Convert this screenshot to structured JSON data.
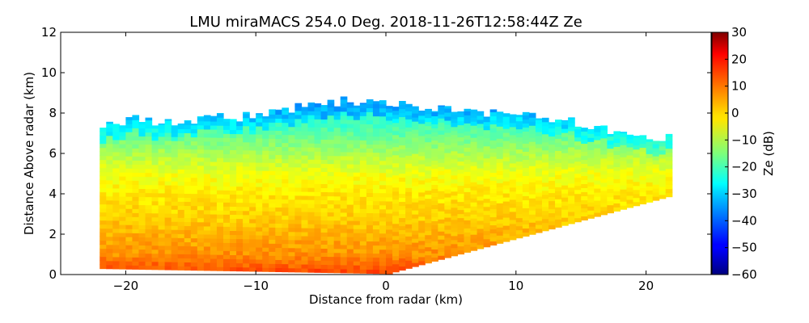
{
  "chart_data": {
    "type": "heatmap",
    "title": "LMU miraMACS 254.0 Deg. 2018-11-26T12:58:44Z  Ze",
    "xlabel": "Distance from radar (km)",
    "ylabel": "Distance Above radar  (km)",
    "xlim": [
      -25,
      25
    ],
    "ylim": [
      0,
      12
    ],
    "xticks": [
      -20,
      -10,
      0,
      10,
      20
    ],
    "xtick_labels": [
      "−20",
      "−10",
      "0",
      "10",
      "20"
    ],
    "yticks": [
      0,
      2,
      4,
      6,
      8,
      10,
      12
    ],
    "ytick_labels": [
      "0",
      "2",
      "4",
      "6",
      "8",
      "10",
      "12"
    ],
    "colorbar": {
      "label": "Ze (dB)",
      "range": [
        -60,
        30
      ],
      "ticks": [
        30,
        20,
        10,
        0,
        -10,
        -20,
        -30,
        -40,
        -50,
        -60
      ],
      "tick_labels": [
        "30",
        "20",
        "10",
        "0",
        "−10",
        "−20",
        "−30",
        "−40",
        "−50",
        "−60"
      ],
      "colormap": "jet"
    },
    "field": {
      "scan_extent_left_km": -22,
      "scan_extent_right_km": 22,
      "right_edge_top_height_km": 3.9,
      "cloud_top_km": [
        [
          -21,
          7.6
        ],
        [
          -19,
          7.7
        ],
        [
          -17,
          7.5
        ],
        [
          -15,
          7.6
        ],
        [
          -13,
          7.9
        ],
        [
          -11,
          7.8
        ],
        [
          -9,
          8.0
        ],
        [
          -7,
          8.3
        ],
        [
          -5,
          8.5
        ],
        [
          -3,
          8.6
        ],
        [
          -1,
          8.6
        ],
        [
          1,
          8.5
        ],
        [
          3,
          8.3
        ],
        [
          5,
          8.2
        ],
        [
          7,
          8.1
        ],
        [
          9,
          8.0
        ],
        [
          11,
          7.8
        ],
        [
          13,
          7.6
        ],
        [
          15,
          7.5
        ],
        [
          17,
          7.2
        ],
        [
          19,
          7.0
        ],
        [
          21,
          6.8
        ]
      ],
      "reflectivity_profile_dBZ": [
        [
          0.2,
          12
        ],
        [
          1.0,
          6
        ],
        [
          2.0,
          3
        ],
        [
          3.0,
          0
        ],
        [
          4.0,
          -2
        ],
        [
          5.0,
          -5
        ],
        [
          6.0,
          -11
        ],
        [
          7.0,
          -18
        ],
        [
          8.0,
          -24
        ],
        [
          8.6,
          -28
        ]
      ]
    }
  }
}
